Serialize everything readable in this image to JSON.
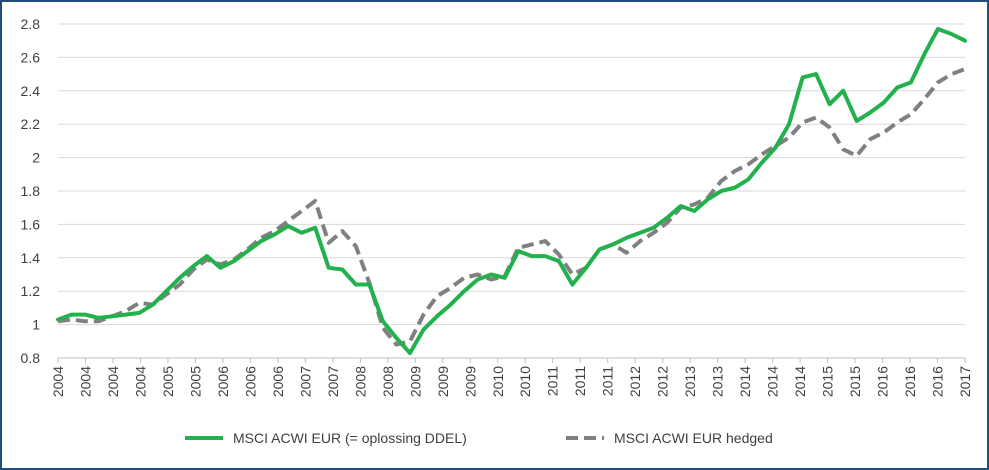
{
  "chart_data": {
    "type": "line",
    "title": "",
    "xlabel": "",
    "ylabel": "",
    "ylim": [
      0.8,
      2.8
    ],
    "y_ticks": [
      "0.8",
      "1",
      "1.2",
      "1.4",
      "1.6",
      "1.8",
      "2",
      "2.2",
      "2.4",
      "2.6",
      "2.8"
    ],
    "x_tick_labels": [
      "2004",
      "2004",
      "2004",
      "2004",
      "2005",
      "2005",
      "2006",
      "2006",
      "2006",
      "2007",
      "2007",
      "2008",
      "2008",
      "2009",
      "2009",
      "2009",
      "2010",
      "2010",
      "2011",
      "2011",
      "2011",
      "2012",
      "2012",
      "2013",
      "2013",
      "2014",
      "2014",
      "2014",
      "2015",
      "2015",
      "2016",
      "2016",
      "2016",
      "2017"
    ],
    "grid": "horizontal",
    "legend_position": "bottom",
    "x": [
      0,
      0.5,
      1,
      1.5,
      2,
      2.5,
      3,
      3.5,
      4,
      4.5,
      5,
      5.5,
      6,
      6.5,
      7,
      7.5,
      8,
      8.5,
      9,
      9.5,
      10,
      10.5,
      11,
      11.5,
      12,
      12.5,
      13,
      13.5,
      14,
      14.5,
      15,
      15.5,
      16,
      16.5,
      17,
      17.5,
      18,
      18.5,
      19,
      19.5,
      20,
      20.5,
      21,
      21.5,
      22,
      22.5,
      23,
      23.5,
      24,
      24.5,
      25,
      25.5,
      26,
      26.5,
      27,
      27.5,
      28,
      28.5,
      29,
      29.5,
      30,
      30.5,
      31,
      31.5,
      32,
      32.5,
      33,
      33.5
    ],
    "series": [
      {
        "name": "MSCI ACWI EUR (= oplossing DDEL)",
        "color": "#22b14c",
        "style": "solid",
        "values": [
          1.03,
          1.06,
          1.06,
          1.04,
          1.05,
          1.06,
          1.07,
          1.12,
          1.2,
          1.28,
          1.35,
          1.41,
          1.34,
          1.38,
          1.44,
          1.5,
          1.54,
          1.59,
          1.55,
          1.58,
          1.34,
          1.33,
          1.24,
          1.24,
          1.02,
          0.92,
          0.83,
          0.97,
          1.05,
          1.12,
          1.2,
          1.27,
          1.3,
          1.28,
          1.44,
          1.41,
          1.41,
          1.38,
          1.24,
          1.34,
          1.45,
          1.48,
          1.52,
          1.55,
          1.58,
          1.64,
          1.71,
          1.68,
          1.75,
          1.8,
          1.82,
          1.87,
          1.97,
          2.06,
          2.2,
          2.48,
          2.5,
          2.32,
          2.4,
          2.22,
          2.27,
          2.33,
          2.42,
          2.45,
          2.62,
          2.77,
          2.74,
          2.7
        ]
      },
      {
        "name": "MSCI ACWI EUR hedged",
        "color": "#808080",
        "style": "dashed",
        "values": [
          1.02,
          1.03,
          1.02,
          1.02,
          1.05,
          1.08,
          1.13,
          1.12,
          1.18,
          1.24,
          1.33,
          1.39,
          1.36,
          1.39,
          1.45,
          1.52,
          1.56,
          1.62,
          1.68,
          1.74,
          1.49,
          1.56,
          1.47,
          1.25,
          0.98,
          0.88,
          0.9,
          1.06,
          1.17,
          1.22,
          1.28,
          1.3,
          1.27,
          1.29,
          1.46,
          1.48,
          1.5,
          1.42,
          1.3,
          1.34,
          1.45,
          1.48,
          1.43,
          1.5,
          1.55,
          1.61,
          1.7,
          1.72,
          1.76,
          1.86,
          1.92,
          1.96,
          2.02,
          2.07,
          2.12,
          2.21,
          2.24,
          2.18,
          2.05,
          2.01,
          2.11,
          2.15,
          2.21,
          2.26,
          2.35,
          2.45,
          2.5,
          2.53
        ]
      }
    ]
  }
}
